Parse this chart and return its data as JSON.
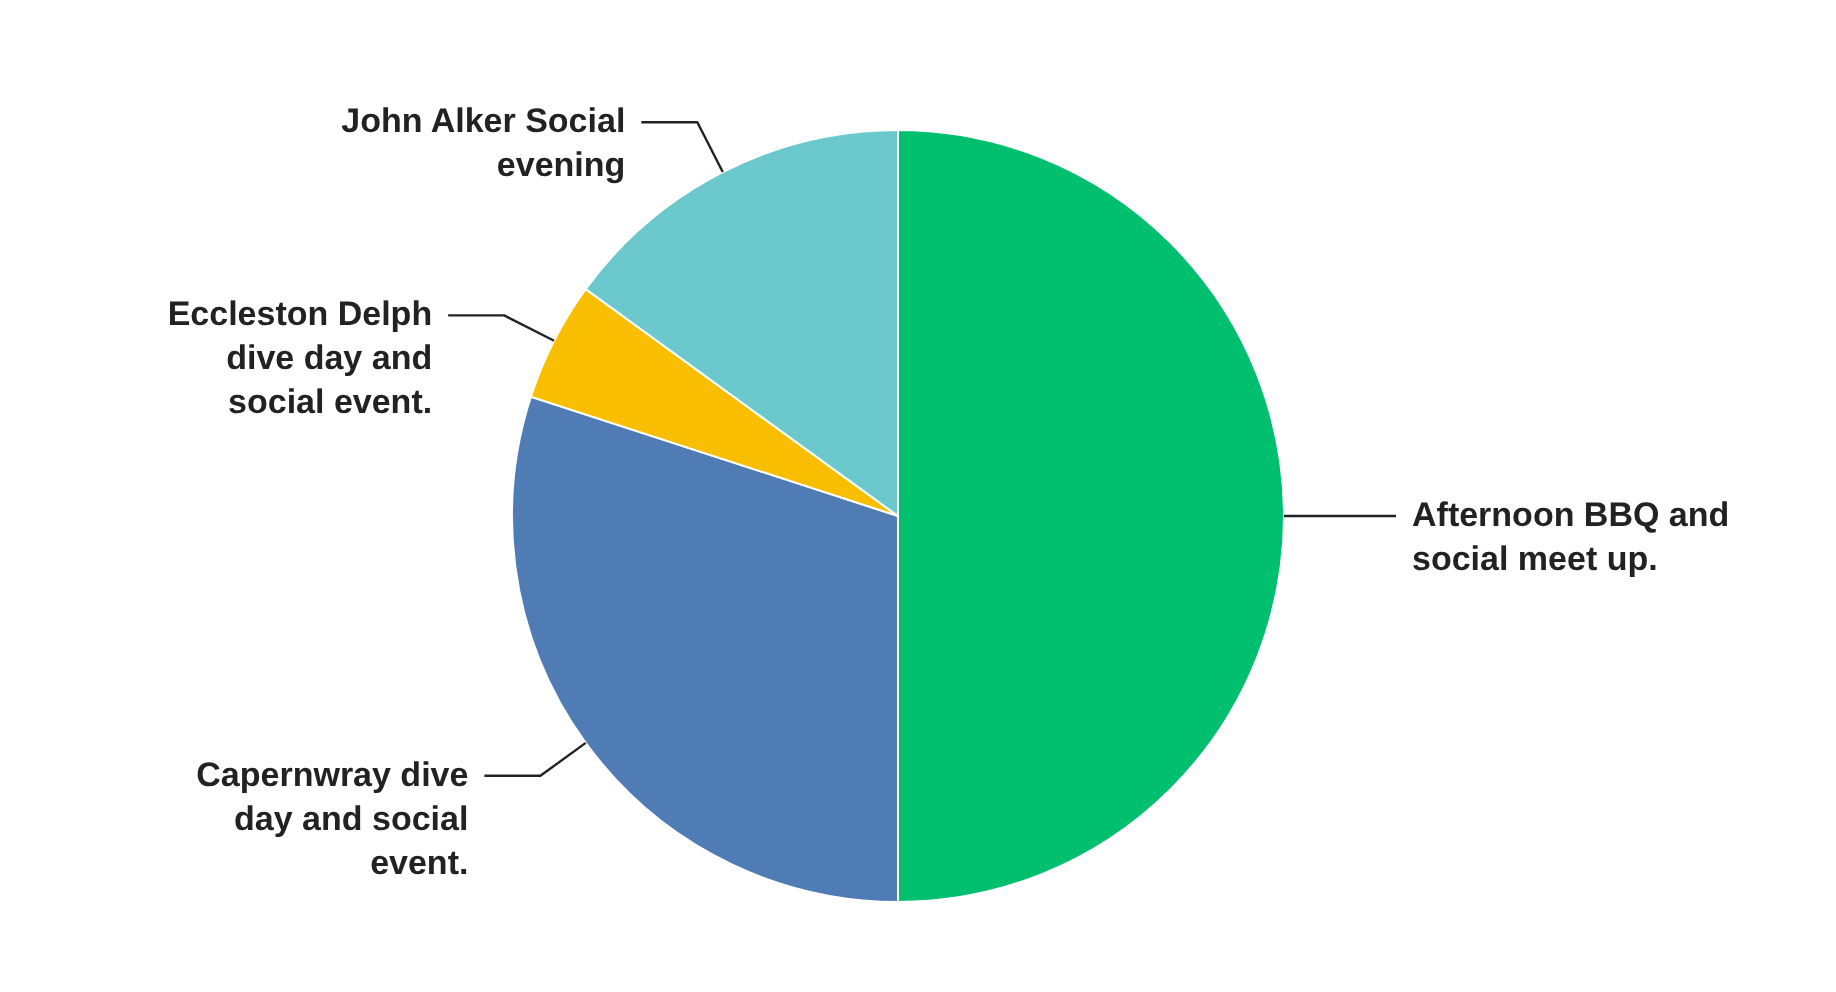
{
  "chart_data": {
    "type": "pie",
    "categories": [
      "Afternoon BBQ and social meet up.",
      "Capernwray dive day and social event.",
      "Eccleston Delph dive day and social event.",
      "John Alker Social evening"
    ],
    "values": [
      50,
      30,
      5,
      15
    ],
    "colors": [
      "#00bf6f",
      "#507cb6",
      "#f9be00",
      "#6bc8cd"
    ]
  }
}
